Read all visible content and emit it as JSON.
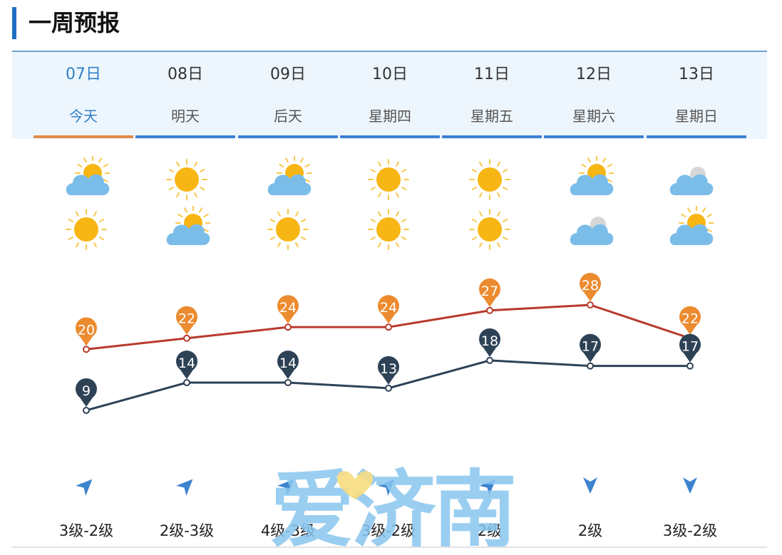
{
  "section": {
    "title": "一周预报"
  },
  "days": [
    {
      "date": "07日",
      "week": "今天",
      "day_icon": "cloud-sun-icon",
      "night_icon": "sun-icon",
      "wind_icon": "wind-direction-icon",
      "wind": "3级-2级"
    },
    {
      "date": "08日",
      "week": "明天",
      "day_icon": "sun-icon",
      "night_icon": "cloud-sun-icon",
      "wind_icon": "wind-direction-icon",
      "wind": "2级-3级"
    },
    {
      "date": "09日",
      "week": "后天",
      "day_icon": "cloud-sun-icon",
      "night_icon": "sun-icon",
      "wind_icon": "wind-direction-icon",
      "wind": "4级-3级"
    },
    {
      "date": "10日",
      "week": "星期四",
      "day_icon": "sun-icon",
      "night_icon": "sun-icon",
      "wind_icon": "wind-direction-icon",
      "wind": "3级-2级"
    },
    {
      "date": "11日",
      "week": "星期五",
      "day_icon": "sun-icon",
      "night_icon": "sun-icon",
      "wind_icon": "wind-direction-icon",
      "wind": "2级"
    },
    {
      "date": "12日",
      "week": "星期六",
      "day_icon": "cloud-sun-icon",
      "night_icon": "cloud-icon",
      "wind_icon": "wind-direction-icon",
      "wind": "2级"
    },
    {
      "date": "13日",
      "week": "星期日",
      "day_icon": "cloud-icon",
      "night_icon": "cloud-sun-icon",
      "wind_icon": "wind-direction-icon",
      "wind": "3级-2级"
    }
  ],
  "chart_data": {
    "type": "line",
    "categories": [
      "07日",
      "08日",
      "09日",
      "10日",
      "11日",
      "12日",
      "13日"
    ],
    "series": [
      {
        "values": [
          20,
          22,
          24,
          24,
          27,
          28,
          22
        ],
        "color": "#b83a2e",
        "marker_color": "#ec8b2f"
      },
      {
        "values": [
          9,
          14,
          14,
          13,
          18,
          17,
          17
        ],
        "color": "#2e4256",
        "marker_color": "#2e4256"
      }
    ]
  },
  "watermark": {
    "text": "爱济南",
    "color": "#88c6ef",
    "heart_color": "#f7dd80"
  },
  "colors": {
    "accent": "#1e6fc4",
    "today": "#e08a4a",
    "tab_bar": "#3b7fd3",
    "header_bg": "#eef6fd"
  }
}
